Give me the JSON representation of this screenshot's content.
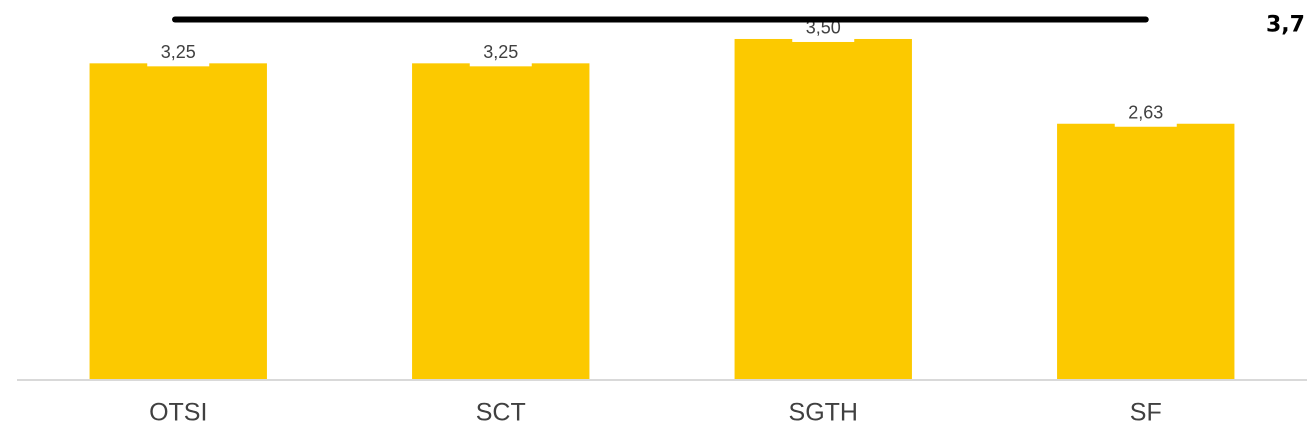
{
  "chart_data": {
    "type": "bar",
    "categories": [
      "OTSI",
      "SCT",
      "SGTH",
      "SF"
    ],
    "values": [
      3.25,
      3.25,
      3.5,
      2.63
    ],
    "value_labels": [
      "3,25",
      "3,25",
      "3,50",
      "2,63"
    ],
    "color": "#fcc900",
    "ylim": [
      0,
      3.9
    ],
    "reference_line": {
      "value": 3.7,
      "label": "3,7",
      "color": "#000000"
    }
  }
}
